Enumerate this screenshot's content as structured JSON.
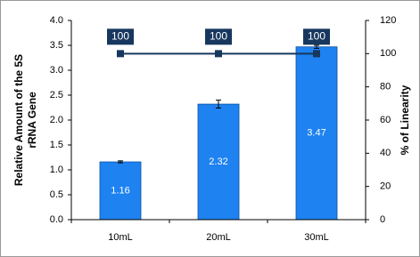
{
  "chart_data": {
    "type": "bar",
    "categories": [
      "10mL",
      "20mL",
      "30mL"
    ],
    "series": [
      {
        "name": "Relative Amount",
        "type": "bar",
        "color": "#1e82f0",
        "values": [
          1.16,
          2.32,
          3.47
        ],
        "errors": [
          0.02,
          0.08,
          0.03
        ]
      },
      {
        "name": "% of Linearity",
        "type": "line",
        "axis": "y2",
        "color": "#17375e",
        "values": [
          100,
          100,
          100
        ]
      }
    ],
    "y_label": [
      "Relative Amount of the 5S",
      "rRNA Gene"
    ],
    "y2_label": "% of Linearity",
    "ylim": [
      0,
      4
    ],
    "yticks": [
      {
        "value": 0,
        "label": "0.0"
      },
      0.5,
      {
        "value": 1,
        "label": "1.0"
      },
      1.5,
      {
        "value": 2,
        "label": "2.0"
      },
      2.5,
      {
        "value": 3,
        "label": "3.0"
      },
      3.5,
      {
        "value": 4,
        "label": "4.0"
      }
    ],
    "y2lim": [
      0,
      120
    ],
    "y2ticks": [
      0,
      20,
      40,
      60,
      80,
      100,
      120
    ]
  }
}
